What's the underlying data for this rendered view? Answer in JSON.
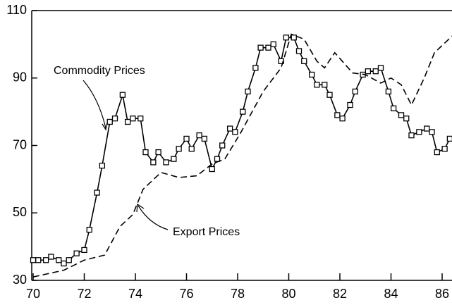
{
  "chart_data": {
    "type": "line",
    "xlim": [
      70,
      86.5
    ],
    "xticks": [
      70,
      72,
      74,
      76,
      78,
      80,
      82,
      84,
      86
    ],
    "ylim": [
      30,
      110
    ],
    "yticks": [
      30,
      50,
      70,
      90,
      110
    ],
    "series": [
      {
        "name": "Commodity Prices",
        "color": "#000000",
        "line_style": "solid",
        "marker": "square",
        "x": [
          70.0,
          70.2,
          70.5,
          70.7,
          71.0,
          71.2,
          71.4,
          71.7,
          72.0,
          72.2,
          72.5,
          72.7,
          73.0,
          73.2,
          73.5,
          73.7,
          73.9,
          74.2,
          74.4,
          74.7,
          74.9,
          75.2,
          75.5,
          75.7,
          76.0,
          76.2,
          76.5,
          76.7,
          77.0,
          77.2,
          77.4,
          77.7,
          77.9,
          78.2,
          78.4,
          78.7,
          78.9,
          79.2,
          79.4,
          79.7,
          79.9,
          80.2,
          80.4,
          80.6,
          80.9,
          81.1,
          81.4,
          81.6,
          81.9,
          82.1,
          82.4,
          82.6,
          82.9,
          83.1,
          83.4,
          83.6,
          83.9,
          84.1,
          84.4,
          84.6,
          84.8,
          85.1,
          85.4,
          85.6,
          85.8,
          86.1,
          86.3
        ],
        "values": [
          36,
          36,
          36,
          37,
          36,
          35,
          36,
          38,
          39,
          45,
          56,
          64,
          77,
          78,
          85,
          77,
          78,
          78,
          68,
          65,
          68,
          65,
          66,
          69,
          72,
          69,
          73,
          72,
          63,
          66,
          70,
          75,
          74,
          80,
          86,
          93,
          99,
          99,
          100,
          95,
          102,
          102,
          98,
          95,
          91,
          88,
          88,
          85,
          79,
          78,
          82,
          86,
          91,
          92,
          92,
          93,
          86,
          81,
          79,
          78,
          73,
          74,
          75,
          74,
          68,
          69,
          72
        ]
      },
      {
        "name": "Export Prices",
        "color": "#000000",
        "line_style": "dashed",
        "marker": "none",
        "x": [
          70,
          71.2,
          72,
          72.8,
          73.4,
          73.9,
          74.3,
          75.0,
          75.7,
          76.4,
          77.0,
          77.5,
          78.1,
          79.0,
          79.7,
          80.1,
          80.6,
          81.1,
          81.4,
          81.8,
          82.5,
          83.0,
          83.6,
          84.0,
          84.4,
          84.8,
          85.3,
          85.7,
          86.4
        ],
        "values": [
          31,
          33,
          36,
          37.5,
          46,
          49.5,
          57,
          62,
          60.5,
          61,
          64.5,
          66,
          73.5,
          86,
          93,
          103,
          101.5,
          95,
          93,
          97.5,
          91.5,
          91,
          88.5,
          90,
          88,
          82,
          90,
          97.5,
          102.5
        ]
      }
    ]
  }
}
